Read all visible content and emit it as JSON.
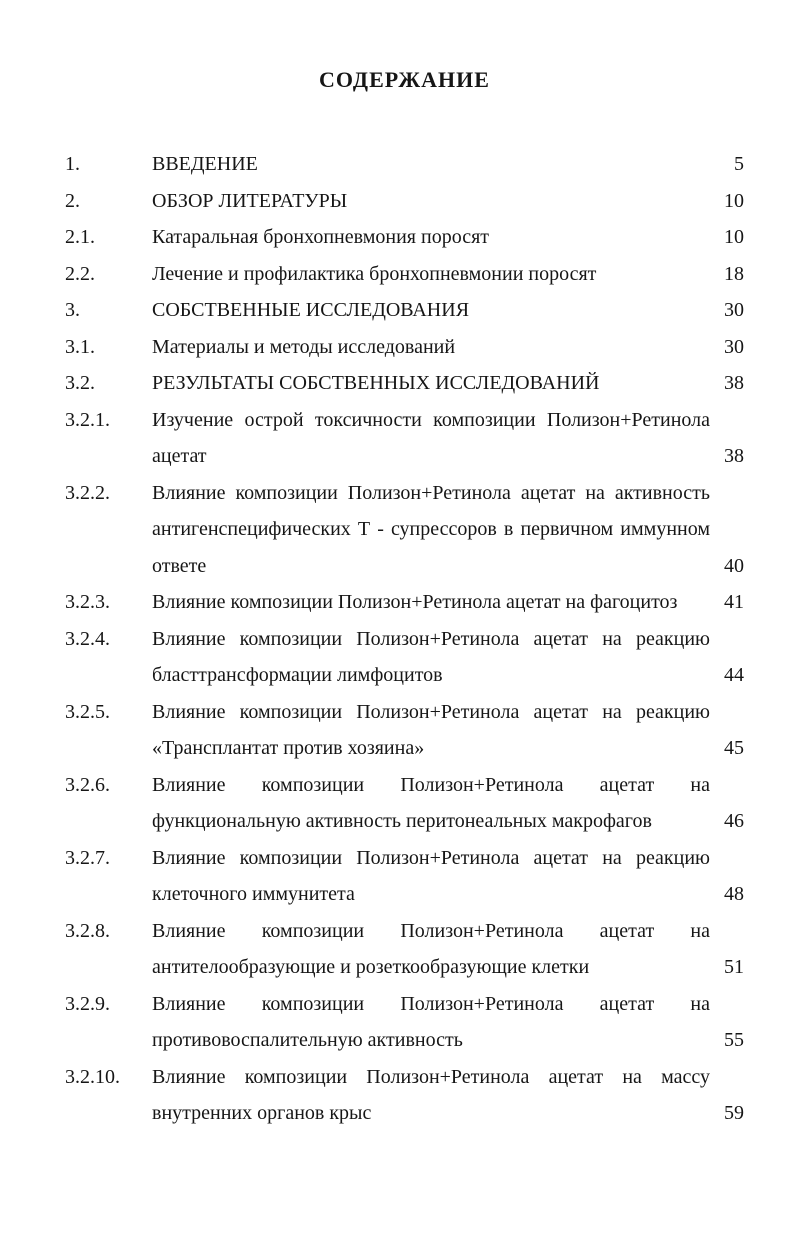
{
  "page_title": "СОДЕРЖАНИЕ",
  "toc": {
    "entries": [
      {
        "num": "1.",
        "lines": [
          "ВВЕДЕНИЕ"
        ],
        "page": "5"
      },
      {
        "num": "2.",
        "lines": [
          "ОБЗОР ЛИТЕРАТУРЫ"
        ],
        "page": "10"
      },
      {
        "num": "2.1.",
        "lines": [
          "Катаральная бронхопневмония поросят"
        ],
        "page": "10"
      },
      {
        "num": "2.2.",
        "lines": [
          "Лечение и профилактика бронхопневмонии поросят"
        ],
        "page": "18"
      },
      {
        "num": "3.",
        "lines": [
          "СОБСТВЕННЫЕ ИССЛЕДОВАНИЯ"
        ],
        "page": "30"
      },
      {
        "num": "3.1.",
        "lines": [
          "Материалы и методы исследований"
        ],
        "page": "30"
      },
      {
        "num": "3.2.",
        "lines": [
          "РЕЗУЛЬТАТЫ СОБСТВЕННЫХ ИССЛЕДОВАНИЙ"
        ],
        "page": "38"
      },
      {
        "num": "3.2.1.",
        "lines": [
          "Изучение острой токсичности композиции Полизон+Ретинола",
          "ацетат"
        ],
        "page": "38"
      },
      {
        "num": "3.2.2.",
        "lines": [
          "Влияние композиции Полизон+Ретинола ацетат на активность",
          "антигенспецифических Т - супрессоров в первичном иммунном",
          "ответе"
        ],
        "page": "40"
      },
      {
        "num": "3.2.3.",
        "lines": [
          "Влияние композиции Полизон+Ретинола ацетат на фагоцитоз"
        ],
        "page": "41"
      },
      {
        "num": "3.2.4.",
        "lines": [
          "Влияние композиции Полизон+Ретинола ацетат на реакцию",
          "бласттрансформации лимфоцитов"
        ],
        "page": "44"
      },
      {
        "num": "3.2.5.",
        "lines": [
          "Влияние композиции Полизон+Ретинола ацетат на реакцию",
          "«Трансплантат против хозяина»"
        ],
        "page": "45"
      },
      {
        "num": "3.2.6.",
        "lines": [
          "Влияние композиции Полизон+Ретинола ацетат на",
          "функциональную активность перитонеальных макрофагов"
        ],
        "page": "46"
      },
      {
        "num": "3.2.7.",
        "lines": [
          "Влияние композиции Полизон+Ретинола ацетат на реакцию",
          "клеточного иммунитета"
        ],
        "page": "48"
      },
      {
        "num": "3.2.8.",
        "lines": [
          "Влияние композиции Полизон+Ретинола ацетат на",
          "антителообразующие и розеткообразующие клетки"
        ],
        "page": "51"
      },
      {
        "num": "3.2.9.",
        "lines": [
          "Влияние композиции Полизон+Ретинола ацетат на",
          "противовоспалительную активность"
        ],
        "page": "55"
      },
      {
        "num": "3.2.10.",
        "lines": [
          "Влияние композиции Полизон+Ретинола ацетат на массу",
          "внутренних органов крыс"
        ],
        "page": "59"
      }
    ]
  }
}
